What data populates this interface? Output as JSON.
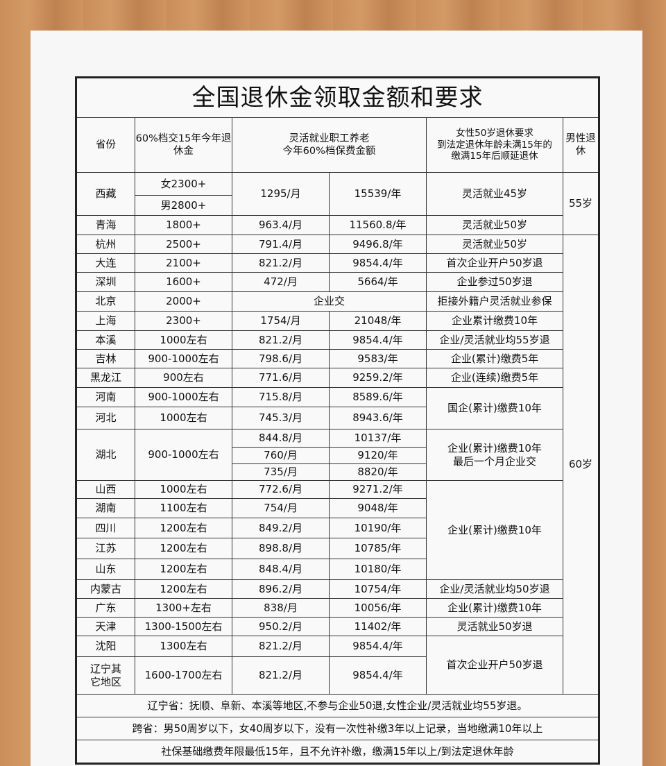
{
  "title": "全国退休金领取金额和要求",
  "headers": {
    "province": "省份",
    "pension": "60%档交15年今年退\n休金",
    "flex": "灵活就业职工养老\n今年60%档保费金额",
    "female": "女性50岁退休要求\n到法定退休年龄未满15年的\n缴满15年后顺延退休",
    "male": "男性退\n休"
  },
  "male_retire": [
    "55岁",
    "60岁"
  ],
  "rows": [
    {
      "province": "西藏",
      "pension_f": "女2300+",
      "pension_m": "男2800+",
      "monthly": "1295/月",
      "yearly": "15539/年",
      "female_req": "灵活就业45岁"
    },
    {
      "province": "青海",
      "pension": "1800+",
      "monthly": "963.4/月",
      "yearly": "11560.8/年",
      "female_req": "灵活就业50岁"
    },
    {
      "province": "杭州",
      "pension": "2500+",
      "monthly": "791.4/月",
      "yearly": "9496.8/年",
      "female_req": "灵活就业50岁"
    },
    {
      "province": "大连",
      "pension": "2100+",
      "monthly": "821.2/月",
      "yearly": "9854.4/年",
      "female_req": "首次企业开户50岁退"
    },
    {
      "province": "深圳",
      "pension": "1600+",
      "monthly": "472/月",
      "yearly": "5664/年",
      "female_req": "企业参过50岁退"
    },
    {
      "province": "北京",
      "pension": "2000+",
      "combined": "企业交",
      "female_req": "拒接外籍户灵活就业参保"
    },
    {
      "province": "上海",
      "pension": "2300+",
      "monthly": "1754/月",
      "yearly": "21048/年",
      "female_req": "企业累计缴费10年"
    },
    {
      "province": "本溪",
      "pension": "1000左右",
      "monthly": "821.2/月",
      "yearly": "9854.4/年",
      "female_req": "企业/灵活就业均55岁退"
    },
    {
      "province": "吉林",
      "pension": "900-1000左右",
      "monthly": "798.6/月",
      "yearly": "9583/年",
      "female_req": "企业(累计)缴费5年"
    },
    {
      "province": "黑龙江",
      "pension": "900左右",
      "monthly": "771.6/月",
      "yearly": "9259.2/年",
      "female_req": "企业(连续)缴费5年"
    },
    {
      "province": "河南",
      "pension": "900-1000左右",
      "monthly": "715.8/月",
      "yearly": "8589.6/年",
      "female_req": "国企(累计)缴费10年"
    },
    {
      "province": "河北",
      "pension": "1000左右",
      "monthly": "745.3/月",
      "yearly": "8943.6/年"
    },
    {
      "province": "湖北",
      "pension": "900-1000左右",
      "monthly": [
        "844.8/月",
        "760/月",
        "735/月"
      ],
      "yearly": [
        "10137/年",
        "9120/年",
        "8820/年"
      ],
      "female_req": "企业(累计)缴费10年\n最后一个月企业交"
    },
    {
      "province": "山西",
      "pension": "1000左右",
      "monthly": "772.6/月",
      "yearly": "9271.2/年",
      "female_req": "企业(累计)缴费10年"
    },
    {
      "province": "湖南",
      "pension": "1100左右",
      "monthly": "754/月",
      "yearly": "9048/年"
    },
    {
      "province": "四川",
      "pension": "1200左右",
      "monthly": "849.2/月",
      "yearly": "10190/年"
    },
    {
      "province": "江苏",
      "pension": "1200左右",
      "monthly": "898.8/月",
      "yearly": "10785/年"
    },
    {
      "province": "山东",
      "pension": "1200左右",
      "monthly": "848.4/月",
      "yearly": "10180/年"
    },
    {
      "province": "内蒙古",
      "pension": "1200左右",
      "monthly": "896.2/月",
      "yearly": "10754/年",
      "female_req": "企业/灵活就业均50岁退"
    },
    {
      "province": "广东",
      "pension": "1300+左右",
      "monthly": "838/月",
      "yearly": "10056/年",
      "female_req": "企业(累计)缴费10年"
    },
    {
      "province": "天津",
      "pension": "1300-1500左右",
      "monthly": "950.2/月",
      "yearly": "11402/年",
      "female_req": "灵活就业50岁退"
    },
    {
      "province": "沈阳",
      "pension": "1300左右",
      "monthly": "821.2/月",
      "yearly": "9854.4/年",
      "female_req": "首次企业开户50岁退"
    },
    {
      "province": "辽宁其\n它地区",
      "pension": "1600-1700左右",
      "monthly": "821.2/月",
      "yearly": "9854.4/年"
    }
  ],
  "notes": [
    "辽宁省：抚顺、阜新、本溪等地区,不参与企业50退,女性企业/灵活就业均55岁退。",
    "跨省：男50周岁以下，女40周岁以下，没有一次性补缴3年以上记录，当地缴满10年以上",
    "社保基础缴费年限最低15年，且不允许补缴，缴满15年以上/到法定退休年龄"
  ]
}
